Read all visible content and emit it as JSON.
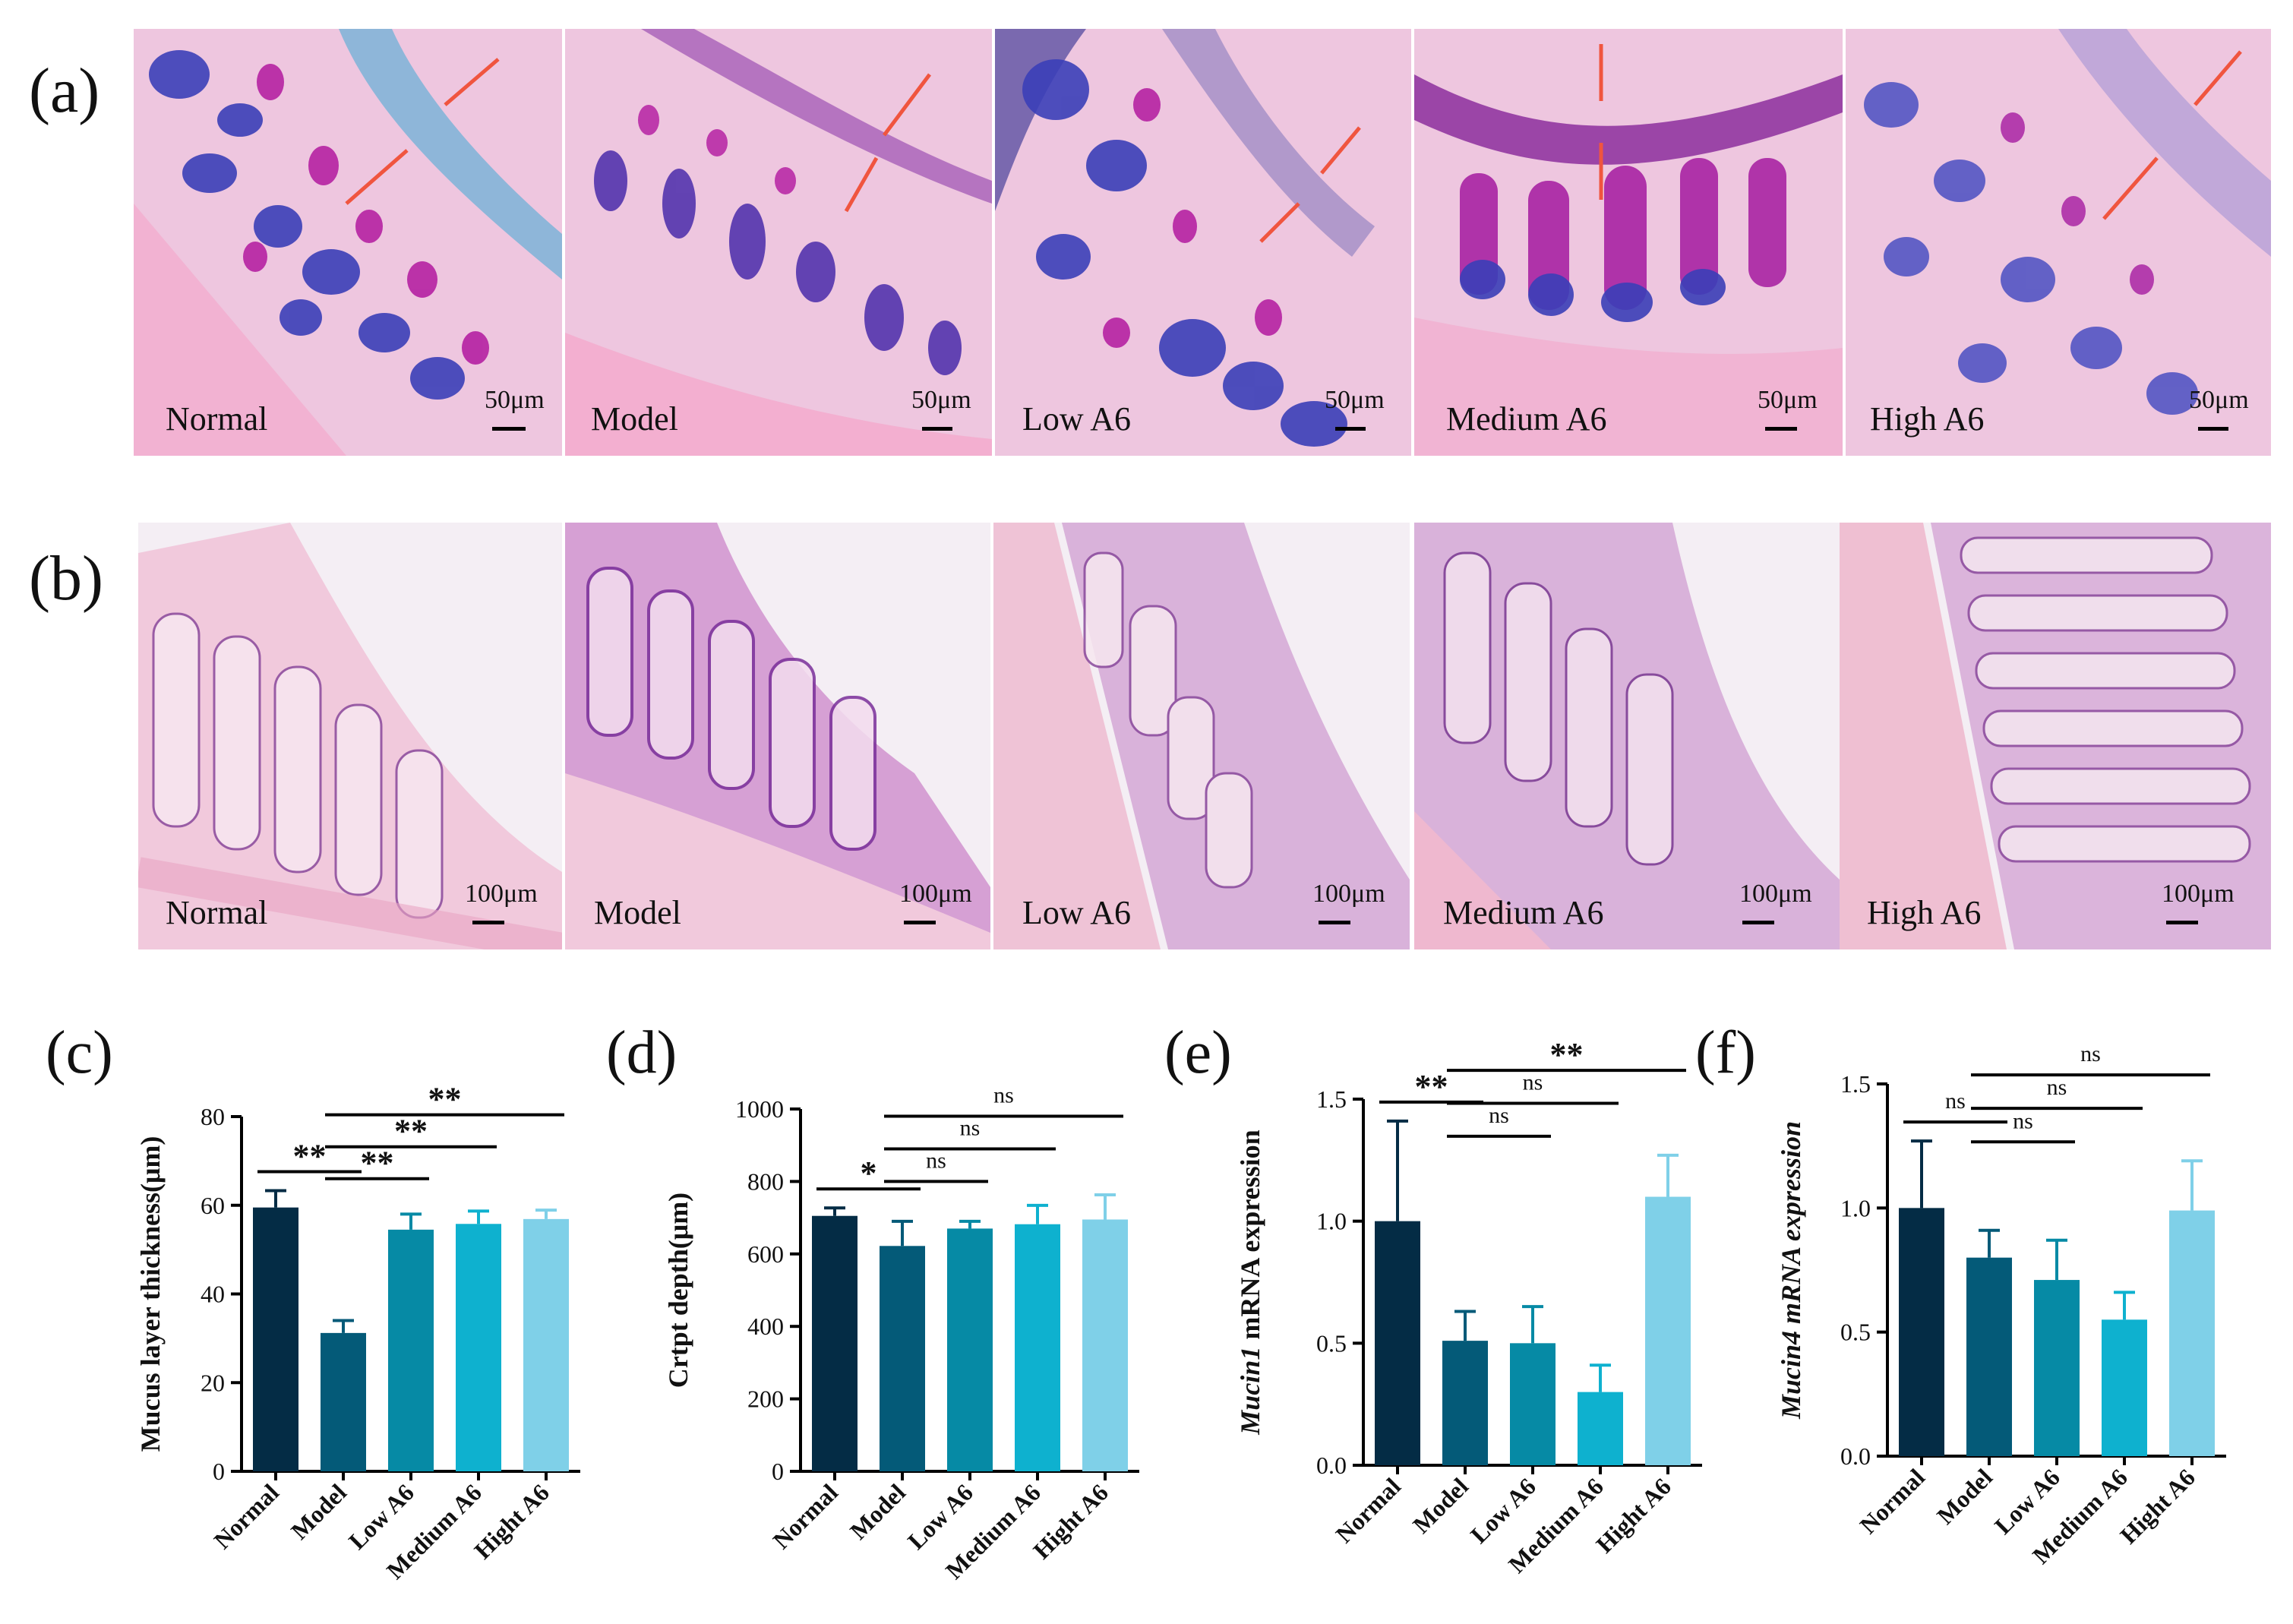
{
  "panels": {
    "a": {
      "letter": "(a)"
    },
    "b": {
      "letter": "(b)"
    }
  },
  "micrographs": {
    "row_a": [
      {
        "label": "Normal",
        "scale": "50μm"
      },
      {
        "label": "Model",
        "scale": "50μm"
      },
      {
        "label": "Low A6",
        "scale": "50μm"
      },
      {
        "label": "Medium A6",
        "scale": "50μm"
      },
      {
        "label": "High A6",
        "scale": "50μm"
      }
    ],
    "row_b": [
      {
        "label": "Normal",
        "scale": "100μm"
      },
      {
        "label": "Model",
        "scale": "100μm"
      },
      {
        "label": "Low A6",
        "scale": "100μm"
      },
      {
        "label": "Medium A6",
        "scale": "100μm"
      },
      {
        "label": "High A6",
        "scale": "100μm"
      }
    ],
    "stain_colors": {
      "ab_pas_background": "#eec6df",
      "goblet_blue": "#3b3fb8",
      "goblet_magenta": "#b2179f",
      "mucus_layer": "#7cb3d8",
      "arrow": "#f0553f",
      "he_background": "#f1c9dc",
      "he_nuclei": "#8a4a9c"
    }
  },
  "colors": {
    "bars": [
      "#042c45",
      "#045a78",
      "#068aa5",
      "#0eb1cf",
      "#7fd0e8"
    ]
  },
  "chart_data": [
    {
      "panel": "(c)",
      "type": "bar",
      "categories": [
        "Normal",
        "Model",
        "Low A6",
        "Medium A6",
        "Hight A6"
      ],
      "values": [
        59.5,
        31.2,
        54.5,
        55.8,
        56.9
      ],
      "errors": [
        3.8,
        2.8,
        3.5,
        2.9,
        2.0
      ],
      "ylabel": "Mucus layer thickness(μm)",
      "ylim": [
        0,
        80
      ],
      "yticks": [
        "0",
        "20",
        "40",
        "60",
        "80"
      ],
      "significance": [
        {
          "from": 0,
          "to": 1,
          "label": "**"
        },
        {
          "from": 1,
          "to": 2,
          "label": "**"
        },
        {
          "from": 1,
          "to": 3,
          "label": "**"
        },
        {
          "from": 1,
          "to": 4,
          "label": "**"
        }
      ]
    },
    {
      "panel": "(d)",
      "type": "bar",
      "categories": [
        "Normal",
        "Model",
        "Low A6",
        "Medium A6",
        "Hight A6"
      ],
      "values": [
        705,
        622,
        670,
        682,
        695
      ],
      "errors": [
        22,
        68,
        20,
        52,
        68
      ],
      "ylabel": "Crtpt depth(μm)",
      "ylim": [
        0,
        1000
      ],
      "yticks": [
        "0",
        "200",
        "400",
        "600",
        "800",
        "1000"
      ],
      "significance": [
        {
          "from": 0,
          "to": 1,
          "label": "*"
        },
        {
          "from": 1,
          "to": 2,
          "label": "ns"
        },
        {
          "from": 1,
          "to": 3,
          "label": "ns"
        },
        {
          "from": 1,
          "to": 4,
          "label": "ns"
        }
      ]
    },
    {
      "panel": "(e)",
      "type": "bar",
      "categories": [
        "Normal",
        "Model",
        "Low A6",
        "Medium A6",
        "Hight A6"
      ],
      "values": [
        1.0,
        0.51,
        0.5,
        0.3,
        1.1
      ],
      "errors": [
        0.41,
        0.12,
        0.15,
        0.11,
        0.17
      ],
      "ylabel_italic": "Mucin1",
      "ylabel_rest": " mRNA expression",
      "ylim": [
        0,
        1.5
      ],
      "yticks": [
        "0.0",
        "0.5",
        "1.0",
        "1.5"
      ],
      "significance": [
        {
          "from": 0,
          "to": 1,
          "label": "**"
        },
        {
          "from": 1,
          "to": 2,
          "label": "ns"
        },
        {
          "from": 1,
          "to": 3,
          "label": "ns"
        },
        {
          "from": 1,
          "to": 4,
          "label": "**"
        }
      ]
    },
    {
      "panel": "(f)",
      "type": "bar",
      "categories": [
        "Normal",
        "Model",
        "Low A6",
        "Medium A6",
        "Hight A6"
      ],
      "values": [
        1.0,
        0.8,
        0.71,
        0.55,
        0.99
      ],
      "errors": [
        0.27,
        0.11,
        0.16,
        0.11,
        0.2
      ],
      "ylabel_italic": "Mucin4 mRNA expression",
      "ylabel_rest": "",
      "ylim": [
        0,
        1.5
      ],
      "yticks": [
        "0.0",
        "0.5",
        "1.0",
        "1.5"
      ],
      "significance": [
        {
          "from": 0,
          "to": 1,
          "label": "ns"
        },
        {
          "from": 1,
          "to": 2,
          "label": "ns"
        },
        {
          "from": 1,
          "to": 3,
          "label": "ns"
        },
        {
          "from": 1,
          "to": 4,
          "label": "ns"
        }
      ]
    }
  ]
}
